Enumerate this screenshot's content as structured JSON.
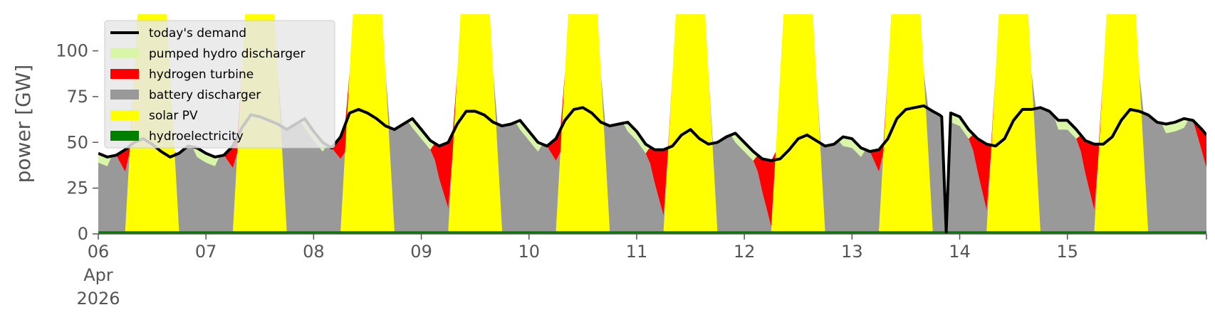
{
  "chart_data": {
    "type": "area",
    "stacked": true,
    "ylabel": "power [GW]",
    "ylim": [
      0,
      120
    ],
    "yticks": [
      0,
      25,
      50,
      75,
      100
    ],
    "xlim": [
      0,
      240
    ],
    "xticks": [
      {
        "at": 0,
        "label": "06",
        "label2": "Apr",
        "label3": "2026"
      },
      {
        "at": 24,
        "label": "07"
      },
      {
        "at": 48,
        "label": "08"
      },
      {
        "at": 72,
        "label": "09"
      },
      {
        "at": 96,
        "label": "10"
      },
      {
        "at": 120,
        "label": "11"
      },
      {
        "at": 144,
        "label": "12"
      },
      {
        "at": 168,
        "label": "13"
      },
      {
        "at": 192,
        "label": "14"
      },
      {
        "at": 216,
        "label": "15"
      }
    ],
    "x_unit": "hours since 06 Apr 2026 00:00",
    "legend_position": "top-left",
    "series": [
      {
        "name": "hydroelectricity",
        "color": "#008000"
      },
      {
        "name": "solar PV",
        "color": "#ffff00"
      },
      {
        "name": "battery discharger",
        "color": "#999999"
      },
      {
        "name": "hydrogen turbine",
        "color": "#ff0000"
      },
      {
        "name": "pumped hydro discharger",
        "color": "#d9f5a8"
      }
    ],
    "demand": {
      "name": "today's demand",
      "color": "#000000",
      "points": [
        [
          0,
          44
        ],
        [
          2,
          42
        ],
        [
          4,
          43
        ],
        [
          6,
          46
        ],
        [
          8,
          50
        ],
        [
          10,
          52
        ],
        [
          12,
          49
        ],
        [
          14,
          45
        ],
        [
          16,
          42
        ],
        [
          18,
          44
        ],
        [
          20,
          48
        ],
        [
          22,
          47
        ],
        [
          24,
          44
        ],
        [
          26,
          42
        ],
        [
          28,
          43
        ],
        [
          30,
          48
        ],
        [
          32,
          58
        ],
        [
          34,
          65
        ],
        [
          36,
          64
        ],
        [
          38,
          62
        ],
        [
          40,
          60
        ],
        [
          42,
          57
        ],
        [
          44,
          60
        ],
        [
          46,
          63
        ],
        [
          48,
          56
        ],
        [
          50,
          50
        ],
        [
          52,
          47
        ],
        [
          54,
          53
        ],
        [
          56,
          66
        ],
        [
          58,
          68
        ],
        [
          60,
          66
        ],
        [
          62,
          63
        ],
        [
          64,
          59
        ],
        [
          66,
          57
        ],
        [
          68,
          60
        ],
        [
          70,
          63
        ],
        [
          72,
          57
        ],
        [
          74,
          51
        ],
        [
          76,
          48
        ],
        [
          78,
          50
        ],
        [
          80,
          60
        ],
        [
          82,
          67
        ],
        [
          84,
          67
        ],
        [
          86,
          65
        ],
        [
          88,
          61
        ],
        [
          90,
          59
        ],
        [
          92,
          60
        ],
        [
          94,
          62
        ],
        [
          96,
          56
        ],
        [
          98,
          50
        ],
        [
          100,
          48
        ],
        [
          102,
          52
        ],
        [
          104,
          62
        ],
        [
          106,
          68
        ],
        [
          108,
          69
        ],
        [
          110,
          66
        ],
        [
          112,
          61
        ],
        [
          114,
          59
        ],
        [
          116,
          60
        ],
        [
          118,
          61
        ],
        [
          120,
          56
        ],
        [
          122,
          49
        ],
        [
          124,
          46
        ],
        [
          126,
          46
        ],
        [
          128,
          48
        ],
        [
          130,
          54
        ],
        [
          132,
          57
        ],
        [
          134,
          52
        ],
        [
          136,
          49
        ],
        [
          138,
          50
        ],
        [
          140,
          53
        ],
        [
          142,
          55
        ],
        [
          144,
          50
        ],
        [
          146,
          45
        ],
        [
          148,
          41
        ],
        [
          150,
          40
        ],
        [
          152,
          41
        ],
        [
          154,
          46
        ],
        [
          156,
          52
        ],
        [
          158,
          54
        ],
        [
          160,
          51
        ],
        [
          162,
          48
        ],
        [
          164,
          49
        ],
        [
          166,
          53
        ],
        [
          168,
          52
        ],
        [
          170,
          47
        ],
        [
          172,
          45
        ],
        [
          174,
          46
        ],
        [
          176,
          52
        ],
        [
          178,
          63
        ],
        [
          180,
          68
        ],
        [
          182,
          69
        ],
        [
          184,
          70
        ],
        [
          186,
          67
        ],
        [
          187.5,
          65
        ],
        [
          188,
          64
        ],
        [
          189,
          1
        ],
        [
          190,
          66
        ],
        [
          192,
          64
        ],
        [
          194,
          57
        ],
        [
          196,
          52
        ],
        [
          198,
          49
        ],
        [
          200,
          48
        ],
        [
          202,
          52
        ],
        [
          204,
          62
        ],
        [
          206,
          68
        ],
        [
          208,
          68
        ],
        [
          210,
          69
        ],
        [
          212,
          67
        ],
        [
          214,
          62
        ],
        [
          216,
          62
        ],
        [
          218,
          57
        ],
        [
          220,
          51
        ],
        [
          222,
          49
        ],
        [
          224,
          49
        ],
        [
          226,
          53
        ],
        [
          228,
          62
        ],
        [
          230,
          68
        ],
        [
          232,
          67
        ],
        [
          234,
          65
        ],
        [
          236,
          61
        ],
        [
          238,
          60
        ],
        [
          240,
          61
        ],
        [
          242,
          63
        ],
        [
          244,
          62
        ],
        [
          246,
          57
        ],
        [
          247,
          54
        ]
      ]
    },
    "nights": [
      {
        "c": 0,
        "lead": "battery",
        "bat": 38
      },
      {
        "c": 24,
        "lead": "battery",
        "bat": 36
      },
      {
        "c": 48,
        "lead": "battery",
        "bat": 44
      },
      {
        "c": 72,
        "lead": "hydrogen",
        "bat": 44
      },
      {
        "c": 96,
        "lead": "battery",
        "bat": 45
      },
      {
        "c": 120,
        "lead": "hydrogen",
        "bat": 42
      },
      {
        "c": 144,
        "lead": "hydrogen",
        "bat": 40
      },
      {
        "c": 168,
        "lead": "battery",
        "bat": 38
      },
      {
        "c": 192,
        "lead": "hydrogen",
        "bat": 40
      },
      {
        "c": 216,
        "lead": "hydrogen",
        "bat": 43
      },
      {
        "c": 240,
        "lead": "battery",
        "bat": 45
      }
    ],
    "days": [
      {
        "c": 12,
        "peak": 260
      },
      {
        "c": 36,
        "peak": 260
      },
      {
        "c": 60,
        "peak": 260
      },
      {
        "c": 84,
        "peak": 260
      },
      {
        "c": 108,
        "peak": 260
      },
      {
        "c": 132,
        "peak": 260
      },
      {
        "c": 156,
        "peak": 260
      },
      {
        "c": 180,
        "peak": 260
      },
      {
        "c": 204,
        "peak": 260
      },
      {
        "c": 228,
        "peak": 260
      }
    ],
    "hydro_level": 1.5,
    "pumped_hydro_extra": 5
  },
  "legend": {
    "entries": [
      {
        "label": "today's demand",
        "kind": "line",
        "color": "#000000"
      },
      {
        "label": "pumped hydro discharger",
        "kind": "patch",
        "color": "#d9f5a8"
      },
      {
        "label": "hydrogen turbine",
        "kind": "patch",
        "color": "#ff0000"
      },
      {
        "label": "battery discharger",
        "kind": "patch",
        "color": "#999999"
      },
      {
        "label": "solar PV",
        "kind": "patch",
        "color": "#ffff00"
      },
      {
        "label": "hydroelectricity",
        "kind": "patch",
        "color": "#008000"
      }
    ]
  }
}
